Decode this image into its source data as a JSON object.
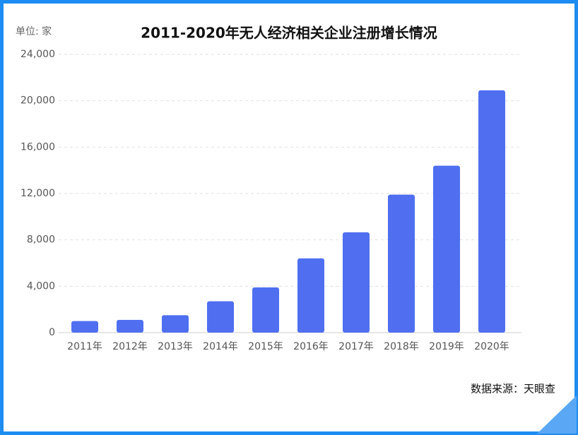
{
  "chart_data": {
    "type": "bar",
    "title": "2011-2020年无人经济相关企业注册增长情况",
    "unit_label": "单位: 家",
    "source": "数据来源：天眼查",
    "categories": [
      "2011年",
      "2012年",
      "2013年",
      "2014年",
      "2015年",
      "2016年",
      "2017年",
      "2018年",
      "2019年",
      "2020年"
    ],
    "values": [
      1000,
      1100,
      1500,
      2700,
      3900,
      6400,
      8650,
      11900,
      14400,
      20900
    ],
    "color": "#4f6ff0",
    "ylim": [
      0,
      24000
    ],
    "yticks": [
      0,
      {
        "value": 4000,
        "label": "4,000"
      },
      {
        "value": 8000,
        "label": "8,000"
      },
      {
        "value": 12000,
        "label": "12,000"
      },
      {
        "value": 16000,
        "label": "16,000"
      },
      {
        "value": 20000,
        "label": "20,000"
      },
      {
        "value": 24000,
        "label": "24,000"
      }
    ],
    "grid": true
  }
}
